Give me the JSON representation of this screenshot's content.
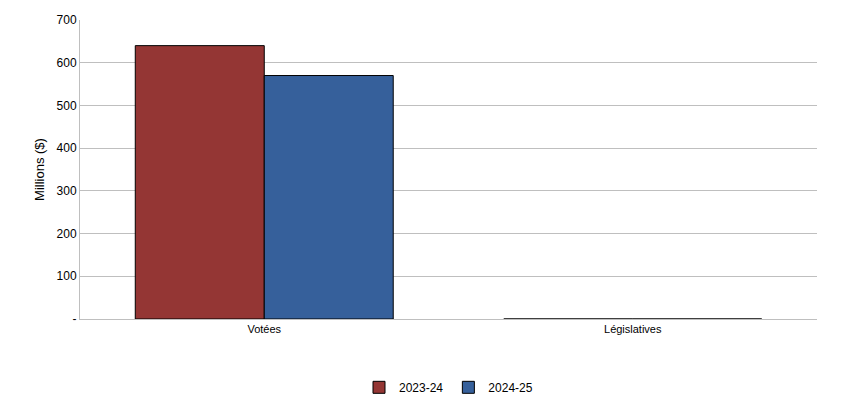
{
  "chart_data": {
    "type": "bar",
    "y_label": "Millions ($)",
    "categories": [
      "Votées",
      "Législatives"
    ],
    "series": [
      {
        "name": "2023-24",
        "color": "#943634",
        "values": [
          640,
          0
        ]
      },
      {
        "name": "2024-25",
        "color": "#36609b",
        "values": [
          570,
          0
        ]
      }
    ],
    "ylim": [
      0,
      700
    ],
    "yticks": [
      {
        "value": 0,
        "label": "-"
      },
      100,
      200,
      300,
      400,
      500,
      600,
      700
    ],
    "grid": true,
    "legend": "bottom"
  }
}
